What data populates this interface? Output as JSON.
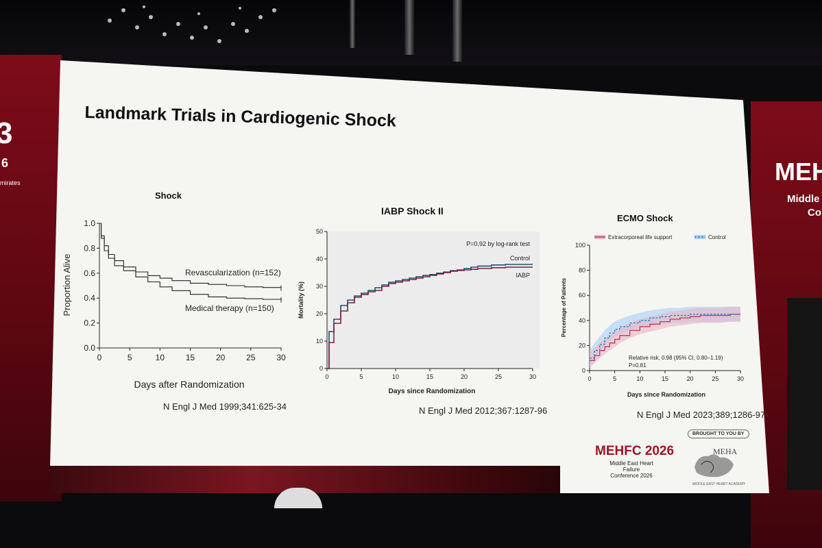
{
  "slide": {
    "title": "Landmark Trials in Cardiogenic Shock"
  },
  "charts": [
    {
      "title": "Shock",
      "citation": "N Engl J Med 1999;341:625-34"
    },
    {
      "title": "IABP Shock II",
      "citation": "N Engl J Med 2012;367:1287-96"
    },
    {
      "title": "ECMO Shock",
      "citation": "N Engl J Med 2023;389;1286-97"
    }
  ],
  "chart_data": [
    {
      "type": "line",
      "title": "Shock",
      "xlabel": "Days after Randomization",
      "ylabel": "Proportion Alive",
      "xlim": [
        0,
        30
      ],
      "ylim": [
        0,
        1
      ],
      "x_ticks": [
        "0",
        "5",
        "10",
        "15",
        "20",
        "25",
        "30"
      ],
      "y_ticks": [
        "0.0",
        "0.2",
        "0.4",
        "0.6",
        "0.8",
        "1.0"
      ],
      "series": [
        {
          "name": "Revascularization (n=152)",
          "x": [
            0,
            0.3,
            0.8,
            1.5,
            2.5,
            4,
            6,
            8,
            10,
            12,
            15,
            18,
            21,
            24,
            27,
            30
          ],
          "y": [
            1.0,
            0.9,
            0.82,
            0.75,
            0.7,
            0.65,
            0.61,
            0.58,
            0.56,
            0.54,
            0.52,
            0.51,
            0.5,
            0.49,
            0.485,
            0.48
          ]
        },
        {
          "name": "Medical therapy (n=150)",
          "x": [
            0,
            0.3,
            0.8,
            1.5,
            2.5,
            4,
            6,
            8,
            10,
            12,
            15,
            18,
            21,
            24,
            27,
            30
          ],
          "y": [
            1.0,
            0.88,
            0.78,
            0.72,
            0.66,
            0.62,
            0.57,
            0.53,
            0.49,
            0.46,
            0.43,
            0.41,
            0.4,
            0.395,
            0.39,
            0.385
          ]
        }
      ]
    },
    {
      "type": "line",
      "title": "IABP Shock II",
      "xlabel": "Days since Randomization",
      "ylabel": "Mortality (%)",
      "xlim": [
        0,
        30
      ],
      "ylim": [
        0,
        50
      ],
      "x_ticks": [
        "0",
        "5",
        "10",
        "15",
        "20",
        "25",
        "30"
      ],
      "y_ticks": [
        "0",
        "10",
        "20",
        "30",
        "40",
        "50"
      ],
      "annotation": "P=0.92 by log-rank test",
      "series": [
        {
          "name": "Control",
          "color": "#1f4e6b",
          "x": [
            0,
            0.3,
            1,
            2,
            3,
            4,
            5,
            6,
            7,
            8,
            9,
            10,
            11,
            12,
            13,
            14,
            15,
            16,
            17,
            18,
            19,
            20,
            21,
            22,
            24,
            26,
            28,
            30
          ],
          "y": [
            0,
            13.5,
            18,
            23,
            25,
            26.5,
            27.5,
            28.5,
            29.5,
            30.5,
            31.5,
            32,
            32.5,
            33,
            33.5,
            34,
            34.3,
            34.8,
            35.2,
            35.7,
            36,
            36.5,
            37,
            37.4,
            37.8,
            38,
            38,
            38
          ]
        },
        {
          "name": "IABP",
          "color": "#7a2040",
          "x": [
            0,
            0.3,
            1,
            2,
            3,
            4,
            5,
            6,
            7,
            8,
            9,
            10,
            11,
            12,
            13,
            14,
            15,
            16,
            17,
            18,
            19,
            20,
            21,
            22,
            24,
            26,
            28,
            30
          ],
          "y": [
            0,
            9.5,
            16.5,
            21,
            24,
            26,
            27,
            28,
            28.5,
            30,
            31,
            31.5,
            32,
            32.5,
            33,
            33.5,
            34,
            34.5,
            35,
            35.5,
            35.8,
            36,
            36.2,
            36.5,
            36.8,
            37,
            37,
            37
          ]
        }
      ]
    },
    {
      "type": "line",
      "title": "ECMO Shock",
      "xlabel": "Days since Randomization",
      "ylabel": "Percentage of Patients",
      "xlim": [
        0,
        30
      ],
      "ylim": [
        0,
        100
      ],
      "x_ticks": [
        "0",
        "5",
        "10",
        "15",
        "20",
        "25",
        "30"
      ],
      "y_ticks": [
        "0",
        "20",
        "40",
        "60",
        "80",
        "100"
      ],
      "annotation_lines": [
        "Relative risk, 0.98 (95% CI, 0.80–1.19)",
        "P=0.81"
      ],
      "series": [
        {
          "name": "Extracorporeal life support",
          "color": "#b83a5e",
          "x": [
            0,
            1,
            2,
            3,
            4,
            5,
            6,
            8,
            10,
            12,
            14,
            16,
            18,
            20,
            22,
            24,
            26,
            28,
            30
          ],
          "y": [
            8,
            12,
            16,
            19,
            22,
            25,
            28,
            32,
            35,
            37,
            39,
            41,
            42,
            43,
            44,
            44,
            44,
            45,
            45
          ]
        },
        {
          "name": "Control",
          "color": "#2a7bd4",
          "x": [
            0,
            1,
            2,
            3,
            4,
            5,
            6,
            8,
            10,
            12,
            14,
            16,
            18,
            20,
            22,
            24,
            26,
            28,
            30
          ],
          "y": [
            10,
            16,
            21,
            26,
            30,
            33,
            35,
            38,
            40,
            42,
            43,
            44,
            44,
            45,
            45,
            45,
            45,
            45,
            45
          ]
        }
      ]
    }
  ],
  "sponsor": {
    "brand": "MEHFC 2026",
    "brand_sub_1": "Middle East Heart Failure",
    "brand_sub_2": "Conference 2026",
    "brought": "BROUGHT TO YOU BY",
    "partner": "MEHA",
    "partner_sub": "MIDDLE EAST HEART ACADEMY"
  },
  "backdrop": {
    "left_big": "3",
    "left_year": "6",
    "left_sub": "mirates",
    "right_big": "MEH",
    "right_sub_1": "Middle",
    "right_sub_2": "Co"
  }
}
